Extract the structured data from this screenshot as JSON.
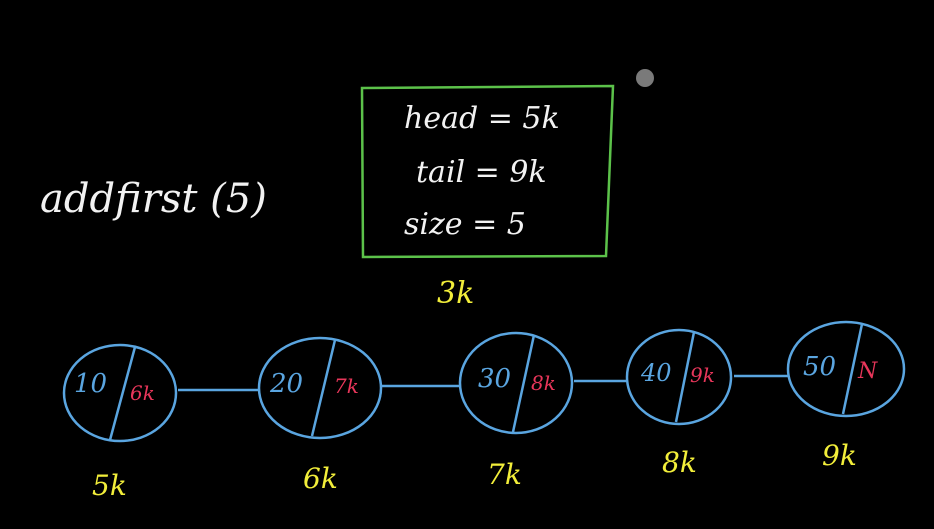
{
  "operation": "addfirst (5)",
  "info_box": {
    "head": "head = 5k",
    "tail": "tail = 9k",
    "size": "size = 5",
    "address": "3k"
  },
  "nodes": [
    {
      "value": "10",
      "next": "6k",
      "address": "5k"
    },
    {
      "value": "20",
      "next": "7k",
      "address": "6k"
    },
    {
      "value": "30",
      "next": "8k",
      "address": "7k"
    },
    {
      "value": "40",
      "next": "9k",
      "address": "8k"
    },
    {
      "value": "50",
      "next": "N",
      "address": "9k"
    }
  ],
  "colors": {
    "background": "#000000",
    "chalk_white": "#f2f2f2",
    "box_green": "#5cc24a",
    "node_blue": "#5aa5e0",
    "address_yellow": "#f2ee3a",
    "pointer_red": "#e8365a",
    "cursor_grey": "#7a7a7a"
  }
}
